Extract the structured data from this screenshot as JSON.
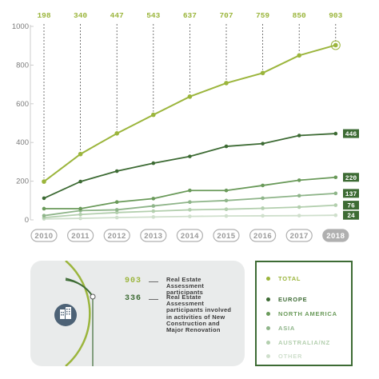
{
  "chart_data": {
    "type": "line",
    "x": [
      "2010",
      "2011",
      "2012",
      "2013",
      "2014",
      "2015",
      "2016",
      "2017",
      "2018"
    ],
    "top_labels": [
      "198",
      "340",
      "447",
      "543",
      "637",
      "707",
      "759",
      "850",
      "903"
    ],
    "ylim": [
      0,
      1000
    ],
    "yticks": [
      "0",
      "200",
      "400",
      "600",
      "800",
      "1000"
    ],
    "grid": false,
    "series": [
      {
        "name": "TOTAL",
        "color": "#9bb53c",
        "values": [
          198,
          340,
          447,
          543,
          637,
          707,
          759,
          850,
          903
        ],
        "end_label": ""
      },
      {
        "name": "EUROPE",
        "color": "#3d6b34",
        "values": [
          112,
          198,
          252,
          293,
          328,
          380,
          394,
          436,
          446
        ],
        "end_label": "446"
      },
      {
        "name": "NORTH AMERICA",
        "color": "#6a9a5a",
        "values": [
          58,
          58,
          92,
          110,
          152,
          152,
          178,
          205,
          220
        ],
        "end_label": "220"
      },
      {
        "name": "ASIA",
        "color": "#8fb58a",
        "values": [
          22,
          48,
          52,
          72,
          92,
          100,
          112,
          125,
          137
        ],
        "end_label": "137"
      },
      {
        "name": "AUSTRALIA/NZ",
        "color": "#b3cfae",
        "values": [
          12,
          28,
          38,
          45,
          52,
          55,
          60,
          66,
          76
        ],
        "end_label": "76"
      },
      {
        "name": "OTHER",
        "color": "#cfdfcc",
        "values": [
          5,
          8,
          12,
          15,
          18,
          20,
          21,
          22,
          24
        ],
        "end_label": "24"
      }
    ]
  },
  "info": {
    "stats": [
      {
        "value": "903",
        "text": "Real Estate Assessment participants",
        "color": "#9bb53c"
      },
      {
        "value": "336",
        "text": "Real Estate Assessment participants involved in activities of New Construction and Major Renovation",
        "color": "#3d6b34"
      }
    ]
  },
  "legend": {
    "items": [
      {
        "label": "TOTAL",
        "color": "#9bb53c"
      },
      {
        "label": "EUROPE",
        "color": "#3d6b34"
      },
      {
        "label": "NORTH AMERICA",
        "color": "#6a9a5a"
      },
      {
        "label": "ASIA",
        "color": "#8fb58a"
      },
      {
        "label": "AUSTRALIA/NZ",
        "color": "#b3cfae"
      },
      {
        "label": "OTHER",
        "color": "#cfdfcc"
      }
    ]
  }
}
